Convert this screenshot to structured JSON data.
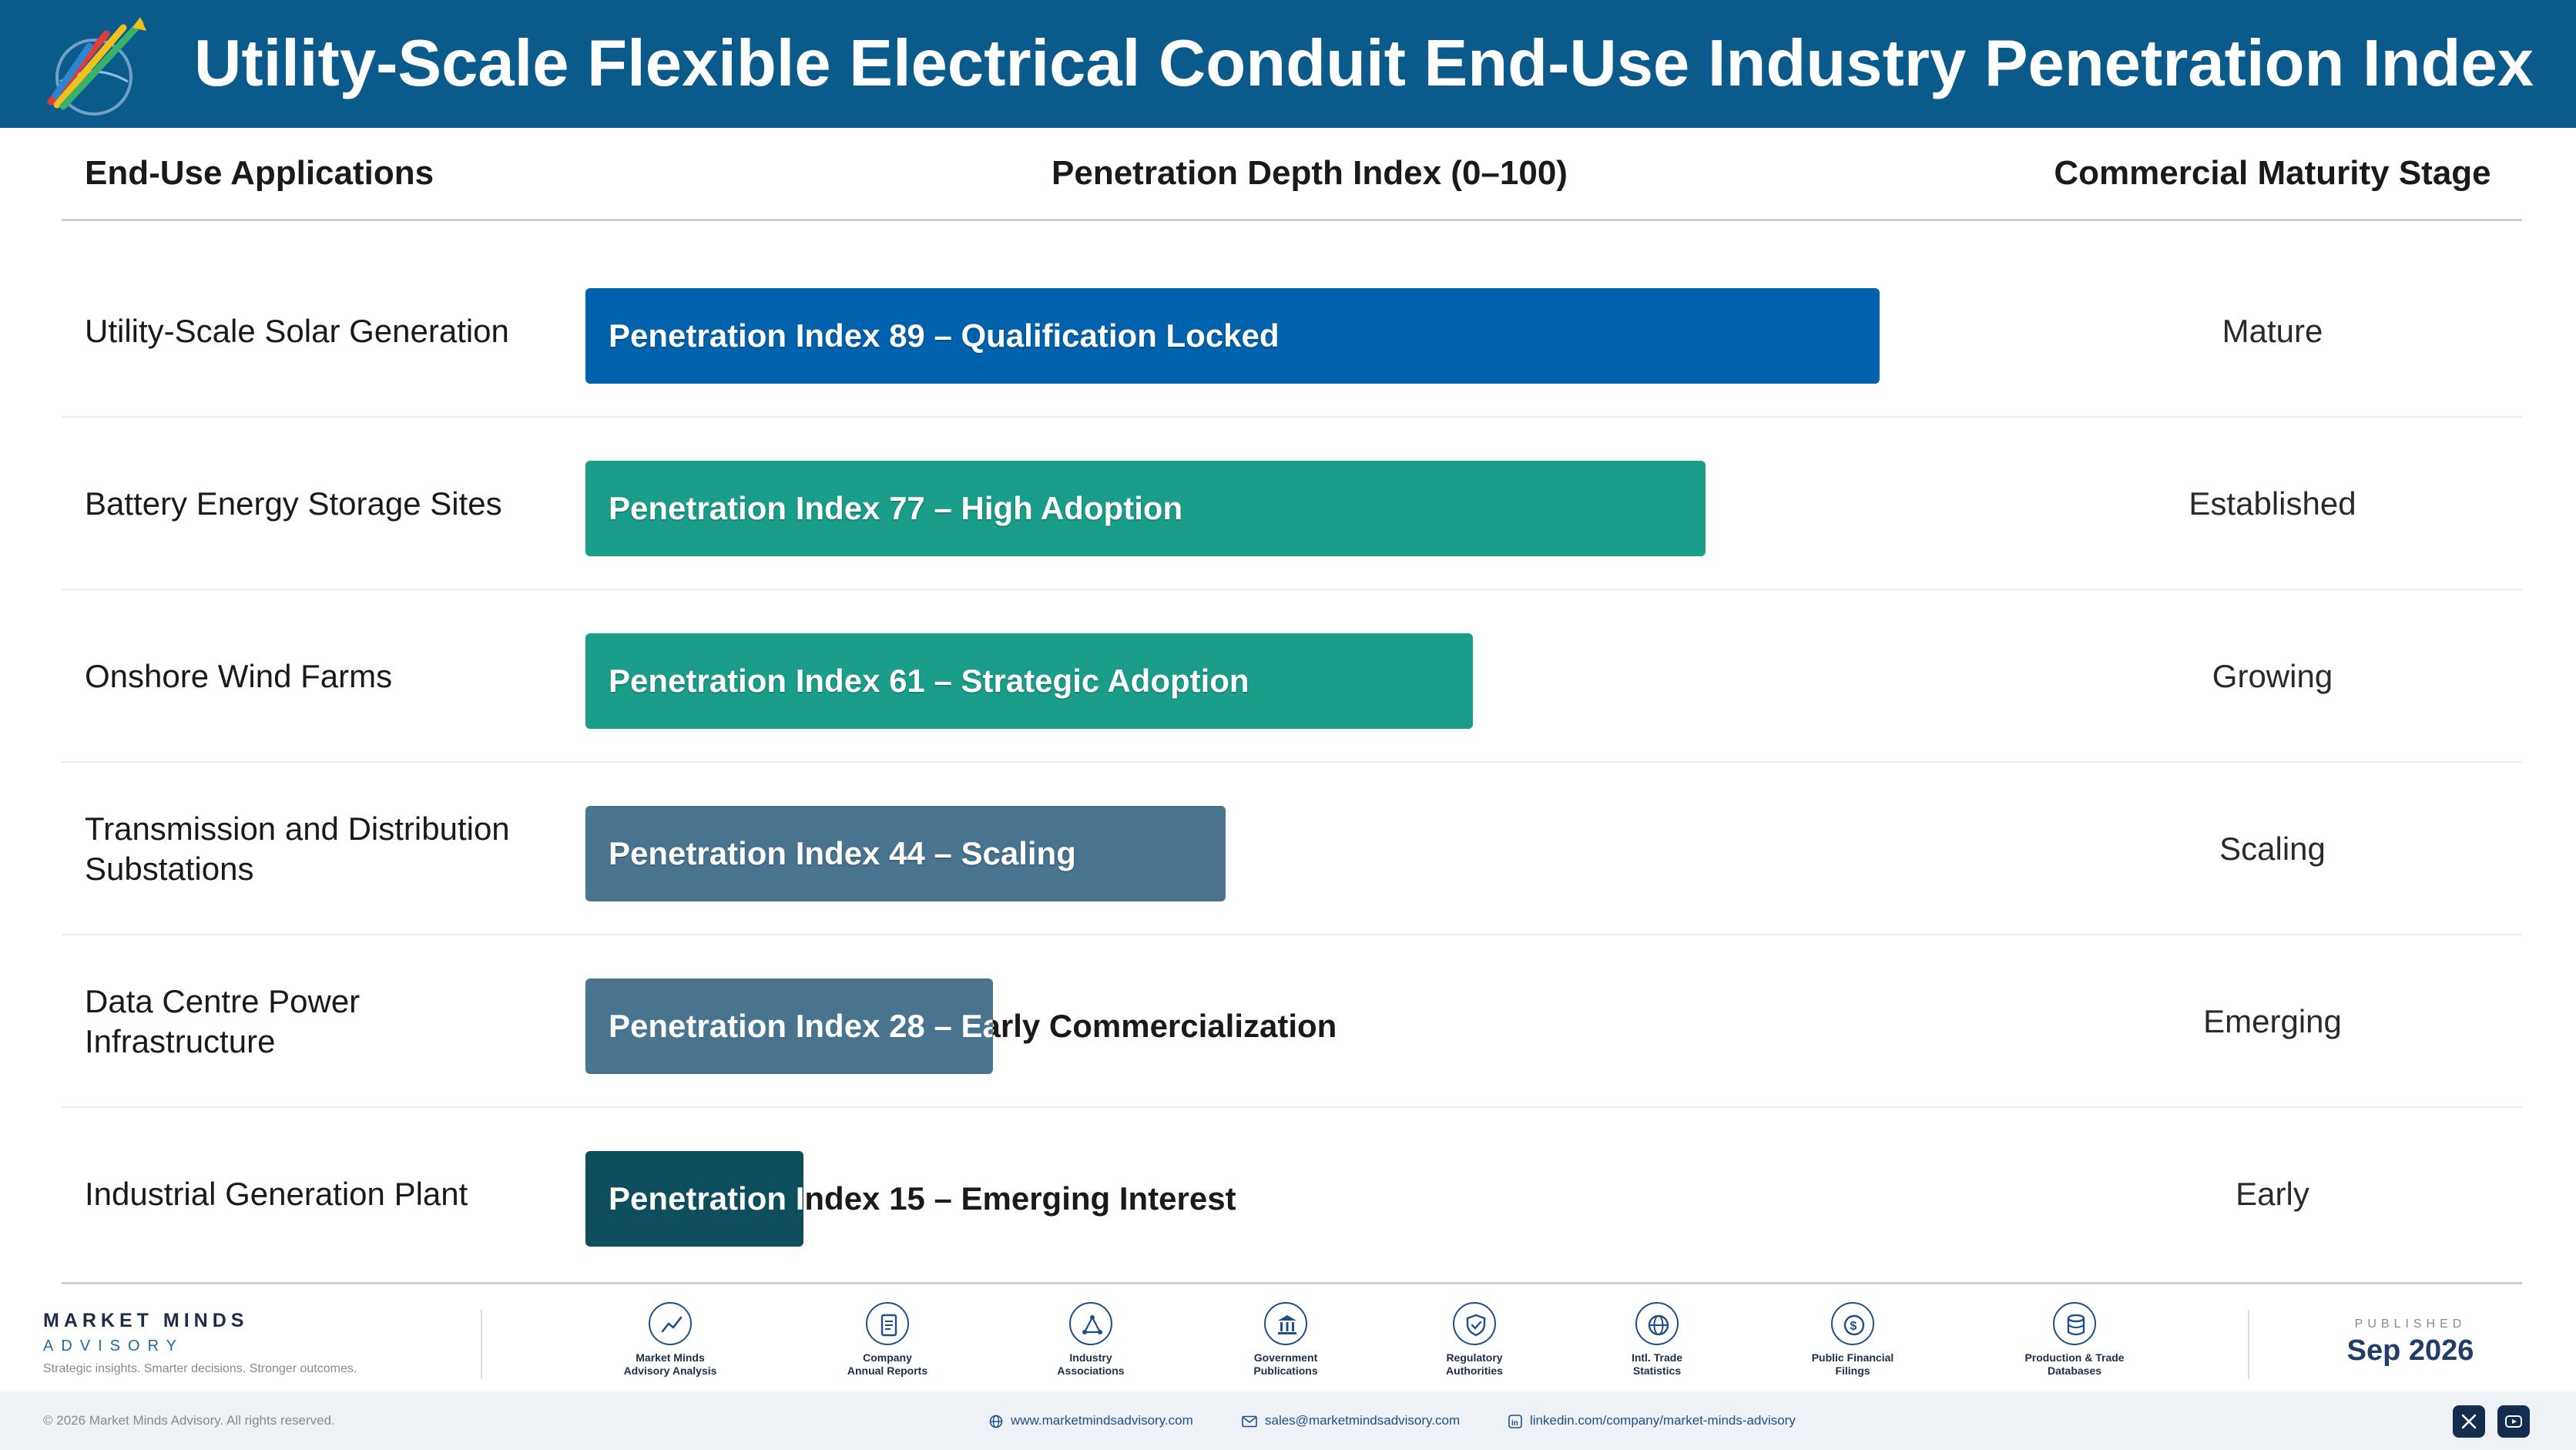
{
  "header": {
    "title": "Utility-Scale Flexible Electrical Conduit End-Use Industry Penetration Index"
  },
  "columns": {
    "applications": "End-Use Applications",
    "index": "Penetration Depth Index (0–100)",
    "stage": "Commercial Maturity Stage"
  },
  "chart_data": {
    "type": "bar",
    "orientation": "horizontal",
    "xlim": [
      0,
      100
    ],
    "categories": [
      "Utility-Scale Solar Generation",
      "Battery Energy Storage Sites",
      "Onshore Wind Farms",
      "Transmission and Distribution Substations",
      "Data Centre Power Infrastructure",
      "Industrial Generation Plant"
    ],
    "values": [
      89,
      77,
      61,
      44,
      28,
      15
    ],
    "bar_labels": [
      "Penetration Index 89 – Qualification Locked",
      "Penetration Index 77 – High Adoption",
      "Penetration Index 61 – Strategic Adoption",
      "Penetration Index 44 – Scaling",
      "Penetration Index 28 – Early Commercialization",
      "Penetration Index 15 – Emerging Interest"
    ],
    "stages": [
      "Mature",
      "Established",
      "Growing",
      "Scaling",
      "Emerging",
      "Early"
    ],
    "colors": [
      "#0062ac",
      "#1a9e8a",
      "#1a9e8a",
      "#48748f",
      "#48748f",
      "#0d4d5c"
    ]
  },
  "footer": {
    "brand_name": "MARKET MINDS",
    "brand_sub": "ADVISORY",
    "tagline": "Strategic insights. Smarter decisions. Stronger outcomes.",
    "sources": [
      {
        "icon": "chart-line-icon",
        "line1": "Market Minds",
        "line2": "Advisory Analysis"
      },
      {
        "icon": "document-icon",
        "line1": "Company",
        "line2": "Annual Reports"
      },
      {
        "icon": "network-icon",
        "line1": "Industry",
        "line2": "Associations"
      },
      {
        "icon": "government-building-icon",
        "line1": "Government",
        "line2": "Publications"
      },
      {
        "icon": "shield-check-icon",
        "line1": "Regulatory",
        "line2": "Authorities"
      },
      {
        "icon": "globe-icon",
        "line1": "Intl. Trade",
        "line2": "Statistics"
      },
      {
        "icon": "coin-icon",
        "line1": "Public Financial",
        "line2": "Filings"
      },
      {
        "icon": "database-icon",
        "line1": "Production & Trade",
        "line2": "Databases"
      }
    ],
    "published_label": "PUBLISHED",
    "published_date": "Sep 2026",
    "copyright": "© 2026 Market Minds Advisory. All rights reserved.",
    "website": "www.marketmindsadvisory.com",
    "email": "sales@marketmindsadvisory.com",
    "linkedin": "linkedin.com/company/market-minds-advisory"
  }
}
